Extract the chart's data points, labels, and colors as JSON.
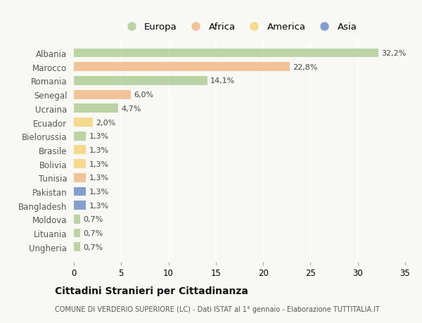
{
  "categories": [
    "Albania",
    "Marocco",
    "Romania",
    "Senegal",
    "Ucraina",
    "Ecuador",
    "Bielorussia",
    "Brasile",
    "Bolivia",
    "Tunisia",
    "Pakistan",
    "Bangladesh",
    "Moldova",
    "Lituania",
    "Ungheria"
  ],
  "values": [
    32.2,
    22.8,
    14.1,
    6.0,
    4.7,
    2.0,
    1.3,
    1.3,
    1.3,
    1.3,
    1.3,
    1.3,
    0.7,
    0.7,
    0.7
  ],
  "labels": [
    "32,2%",
    "22,8%",
    "14,1%",
    "6,0%",
    "4,7%",
    "2,0%",
    "1,3%",
    "1,3%",
    "1,3%",
    "1,3%",
    "1,3%",
    "1,3%",
    "0,7%",
    "0,7%",
    "0,7%"
  ],
  "continents": [
    "Europa",
    "Africa",
    "Europa",
    "Africa",
    "Europa",
    "America",
    "Europa",
    "America",
    "America",
    "Africa",
    "Asia",
    "Asia",
    "Europa",
    "Europa",
    "Europa"
  ],
  "colors": {
    "Europa": "#a8c98a",
    "Africa": "#f0b07a",
    "America": "#f5d06a",
    "Asia": "#6080c0"
  },
  "xlim": [
    0,
    35
  ],
  "xticks": [
    0,
    5,
    10,
    15,
    20,
    25,
    30,
    35
  ],
  "title": "Cittadini Stranieri per Cittadinanza",
  "subtitle": "COMUNE DI VERDERIO SUPERIORE (LC) - Dati ISTAT al 1° gennaio - Elaborazione TUTTITALIA.IT",
  "background_color": "#f8f8f5",
  "plot_bg_color": "#f8f8f5",
  "grid_color": "#ffffff",
  "bar_alpha": 0.75,
  "legend_entries": [
    "Europa",
    "Africa",
    "America",
    "Asia"
  ]
}
